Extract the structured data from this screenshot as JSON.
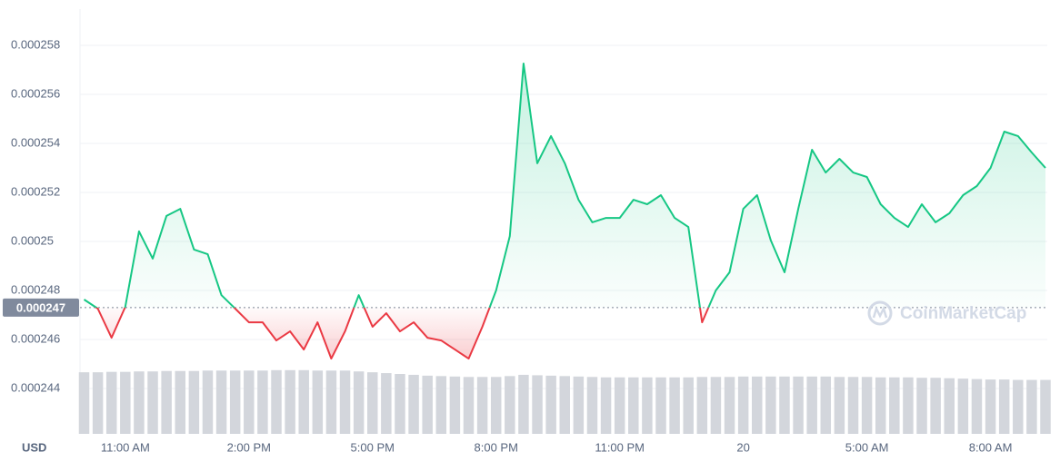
{
  "chart_data": {
    "type": "line",
    "currency": "USD",
    "watermark": "CoinMarketCap",
    "categories": [
      null,
      null,
      null,
      "11:00 AM",
      null,
      null,
      null,
      null,
      null,
      null,
      null,
      null,
      "2:00 PM",
      null,
      null,
      null,
      null,
      null,
      null,
      null,
      null,
      "5:00 PM",
      null,
      null,
      null,
      null,
      null,
      null,
      null,
      null,
      "8:00 PM",
      null,
      null,
      null,
      null,
      null,
      null,
      null,
      null,
      "11:00 PM",
      null,
      null,
      null,
      null,
      null,
      null,
      null,
      null,
      "20",
      null,
      null,
      null,
      null,
      null,
      null,
      null,
      null,
      "5:00 AM",
      null,
      null,
      null,
      null,
      null,
      null,
      null,
      null,
      "8:00 AM",
      null,
      null,
      null,
      null
    ],
    "values": [
      0.00024763,
      0.00024726,
      0.00024607,
      0.00024733,
      0.00025041,
      0.0002493,
      0.00025104,
      0.00025133,
      0.00024967,
      0.00024948,
      0.00024781,
      0.00024726,
      0.0002467,
      0.0002467,
      0.00024596,
      0.00024633,
      0.00024559,
      0.0002467,
      0.00024522,
      0.00024633,
      0.00024781,
      0.00024652,
      0.00024707,
      0.00024633,
      0.0002467,
      0.00024607,
      0.00024596,
      0.00024559,
      0.00024522,
      0.00024652,
      0.000248,
      0.00025022,
      0.00025726,
      0.00025319,
      0.0002543,
      0.00025319,
      0.0002517,
      0.00025078,
      0.00025096,
      0.00025096,
      0.0002517,
      0.00025152,
      0.00025189,
      0.00025096,
      0.00025059,
      0.0002467,
      0.000248,
      0.00024874,
      0.00025133,
      0.00025189,
      0.00025004,
      0.00024874,
      0.00025133,
      0.00025374,
      0.00025281,
      0.00025337,
      0.00025281,
      0.00025263,
      0.00025152,
      0.00025096,
      0.00025059,
      0.00025152,
      0.00025078,
      0.00025115,
      0.00025189,
      0.00025226,
      0.000253,
      0.00025448,
      0.0002543,
      0.00025363,
      0.000253
    ],
    "reference": {
      "value": 0.0002473,
      "label": "0.000247"
    },
    "colors": {
      "up": "#16c784",
      "down": "#ea3943",
      "volume": "#d3d6dc"
    },
    "volume": {
      "axis": "y2",
      "values": [
        14.5,
        14.5,
        14.6,
        14.6,
        14.7,
        14.7,
        14.8,
        14.8,
        14.8,
        14.9,
        14.9,
        14.9,
        14.9,
        14.9,
        15.0,
        15.0,
        15.0,
        14.9,
        14.9,
        14.9,
        14.7,
        14.5,
        14.3,
        14.1,
        13.9,
        13.7,
        13.6,
        13.5,
        13.4,
        13.4,
        13.4,
        13.6,
        13.9,
        13.8,
        13.7,
        13.6,
        13.5,
        13.4,
        13.3,
        13.3,
        13.3,
        13.3,
        13.3,
        13.3,
        13.3,
        13.4,
        13.4,
        13.4,
        13.5,
        13.5,
        13.5,
        13.5,
        13.5,
        13.5,
        13.5,
        13.4,
        13.4,
        13.4,
        13.3,
        13.3,
        13.3,
        13.2,
        13.2,
        13.1,
        13.0,
        12.9,
        12.8,
        12.8,
        12.7,
        12.7,
        12.7
      ]
    },
    "ylim": [
      0.00024215,
      0.00025948
    ],
    "yticks": [
      0.000244,
      0.000246,
      0.000248,
      0.00025,
      0.000252,
      0.000254,
      0.000256,
      0.000258
    ],
    "y2lim": [
      0,
      100
    ],
    "grid": true
  }
}
